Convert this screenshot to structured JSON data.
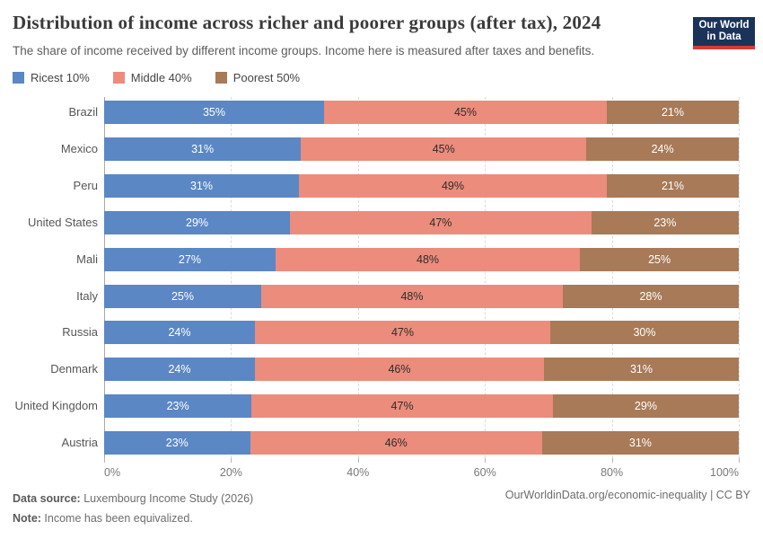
{
  "header": {
    "title": "Distribution of income across richer and poorer groups (after tax), 2024",
    "subtitle": "The share of income received by different income groups. Income here is measured after taxes and benefits.",
    "logo": {
      "line1": "Our World",
      "line2": "in Data",
      "bg_color": "#1b3359",
      "accent_color": "#d93a34"
    }
  },
  "legend": [
    {
      "label": "Ricest 10%",
      "color": "#5b87c5"
    },
    {
      "label": "Middle 40%",
      "color": "#ec8c7c"
    },
    {
      "label": "Poorest 50%",
      "color": "#a87a58"
    }
  ],
  "chart_data": {
    "type": "bar",
    "orientation": "horizontal",
    "stacked": true,
    "normalized_to_100": true,
    "categories": [
      "Brazil",
      "Mexico",
      "Peru",
      "United States",
      "Mali",
      "Italy",
      "Russia",
      "Denmark",
      "United Kingdom",
      "Austria"
    ],
    "series": [
      {
        "name": "Ricest 10%",
        "color": "#5b87c5",
        "label_color": "#ffffff",
        "values": [
          35,
          31,
          31,
          29,
          27,
          25,
          24,
          24,
          23,
          23
        ]
      },
      {
        "name": "Middle 40%",
        "color": "#ec8c7c",
        "label_color": "#2d2d2d",
        "values": [
          45,
          45,
          49,
          47,
          48,
          48,
          47,
          46,
          47,
          46
        ]
      },
      {
        "name": "Poorest 50%",
        "color": "#a87a58",
        "label_color": "#ffffff",
        "values": [
          21,
          24,
          21,
          23,
          25,
          28,
          30,
          31,
          29,
          31
        ]
      }
    ],
    "value_suffix": "%",
    "xlim": [
      0,
      100
    ],
    "x_ticks": [
      "0%",
      "20%",
      "40%",
      "60%",
      "80%",
      "100%"
    ],
    "grid": "dashed-vertical",
    "legend_position": "top-left"
  },
  "footer": {
    "source_label": "Data source:",
    "source_text": " Luxembourg Income Study (2026)",
    "note_label": "Note:",
    "note_text": " Income has been equivalized.",
    "right_text": "OurWorldinData.org/economic-inequality | CC BY"
  }
}
